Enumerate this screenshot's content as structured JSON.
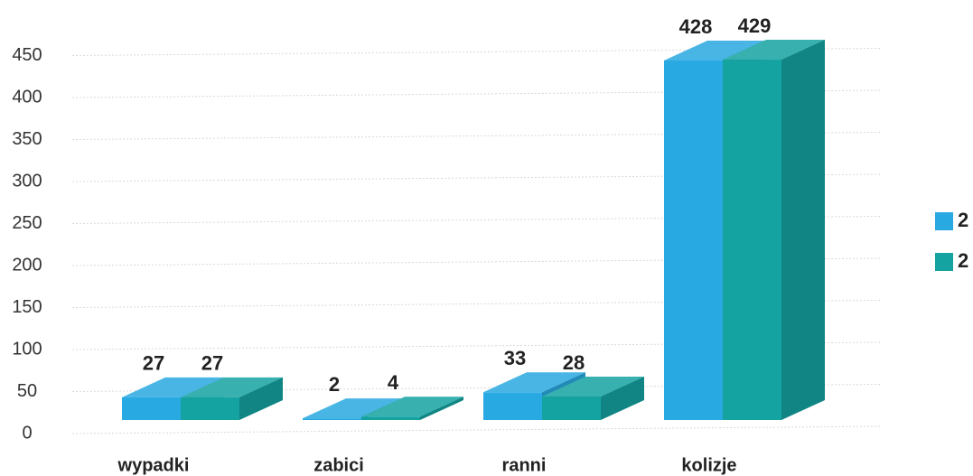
{
  "chart_data": {
    "type": "bar3d",
    "categories": [
      "wypadki",
      "zabici",
      "ranni",
      "kolizje"
    ],
    "series": [
      {
        "name": "2",
        "color": "#29a9e1",
        "values": [
          27,
          2,
          33,
          428
        ]
      },
      {
        "name": "2",
        "color": "#14a3a1",
        "values": [
          27,
          4,
          28,
          429
        ]
      }
    ],
    "ylim": [
      0,
      500
    ],
    "yticks": [
      0,
      50,
      100,
      150,
      200,
      250,
      300,
      350,
      400,
      450
    ],
    "grid": true,
    "legend": "right"
  }
}
